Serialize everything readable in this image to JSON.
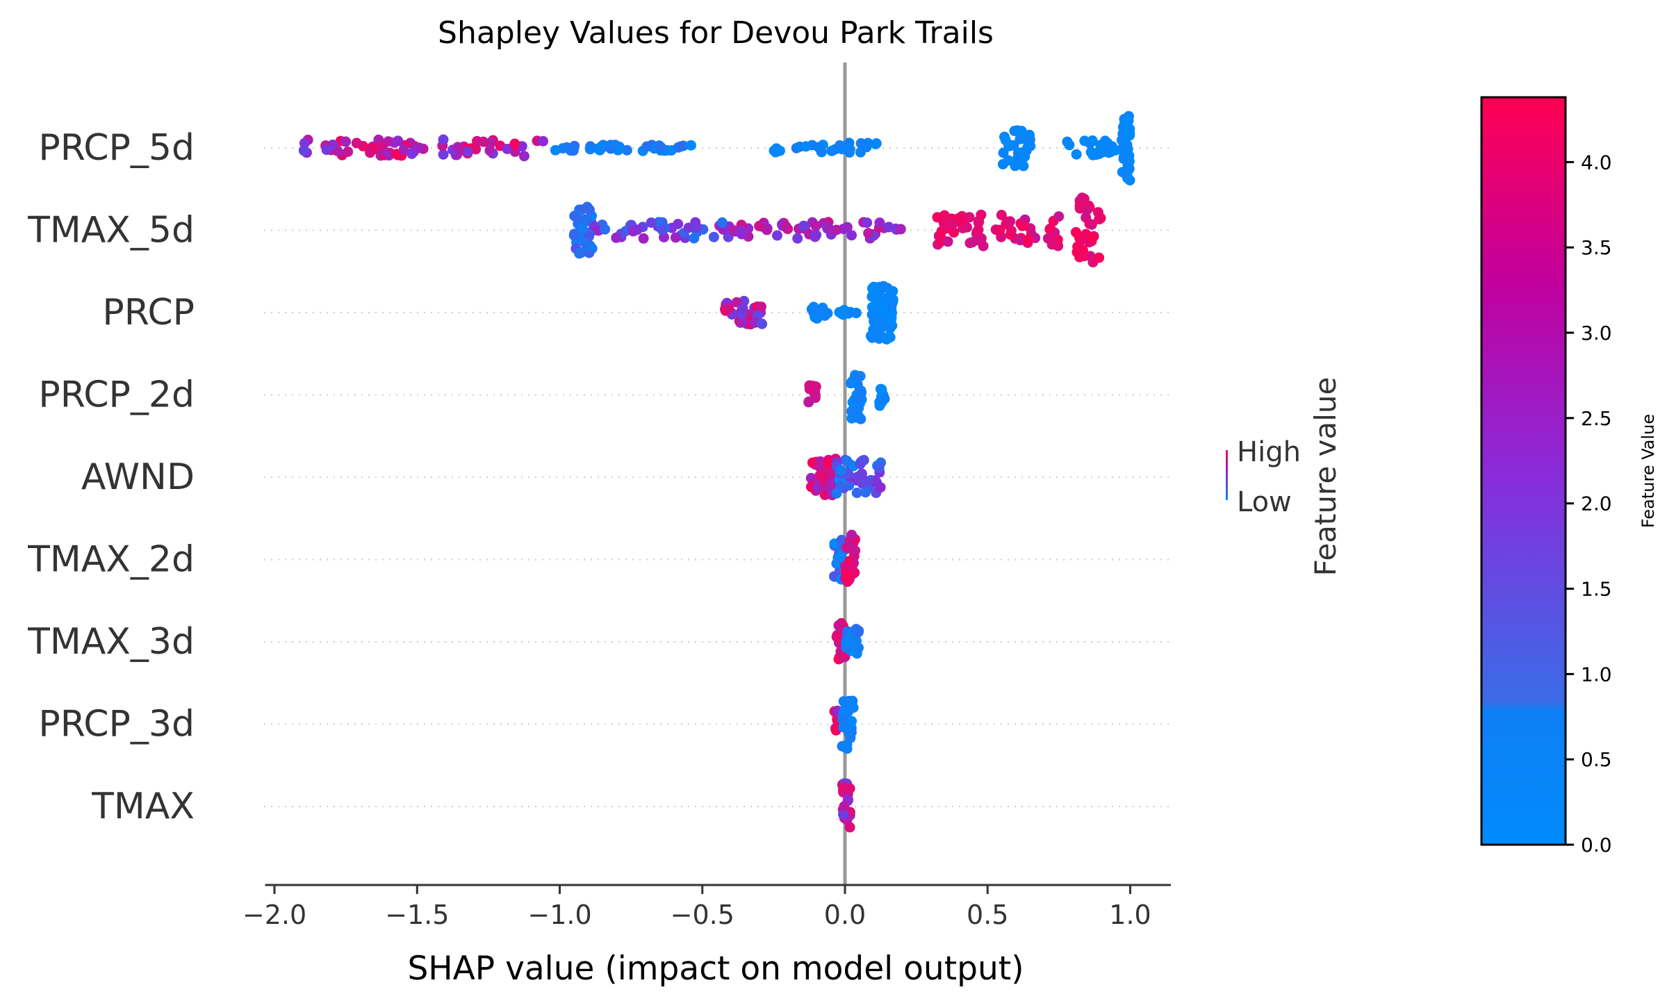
{
  "chart_data": {
    "type": "scatter",
    "subtype": "shap-beeswarm",
    "title": "Shapley Values for Devou Park Trails",
    "xlabel": "SHAP value (impact on model output)",
    "xlim": [
      -2.05,
      1.15
    ],
    "xticks": [
      -2.0,
      -1.5,
      -1.0,
      -0.5,
      0.0,
      0.5,
      1.0
    ],
    "xtick_labels": [
      "−2.0",
      "−1.5",
      "−1.0",
      "−0.5",
      "0.0",
      "0.5",
      "1.0"
    ],
    "zero_line": 0.0,
    "grid": "dotted horizontal row guides",
    "features": [
      {
        "name": "PRCP_5d",
        "clusters": [
          {
            "from": -1.9,
            "to": -1.05,
            "n": 70,
            "spread": 0.5,
            "cmin": 0.35,
            "cmax": 1.0
          },
          {
            "from": -1.05,
            "to": -0.5,
            "n": 40,
            "spread": 0.2,
            "cmin": 0.0,
            "cmax": 0.15
          },
          {
            "from": -0.25,
            "to": 0.12,
            "n": 28,
            "spread": 0.3,
            "cmin": 0.0,
            "cmax": 0.08
          },
          {
            "from": 0.55,
            "to": 0.65,
            "n": 30,
            "spread": 1.1,
            "cmin": 0.0,
            "cmax": 0.05
          },
          {
            "from": 0.75,
            "to": 0.95,
            "n": 22,
            "spread": 0.45,
            "cmin": 0.0,
            "cmax": 0.05
          },
          {
            "from": 0.97,
            "to": 1.0,
            "n": 40,
            "spread": 2.0,
            "cmin": 0.0,
            "cmax": 0.05
          }
        ]
      },
      {
        "name": "TMAX_5d",
        "clusters": [
          {
            "from": -0.95,
            "to": -0.88,
            "n": 32,
            "spread": 1.4,
            "cmin": 0.0,
            "cmax": 0.3
          },
          {
            "from": -0.88,
            "to": -0.4,
            "n": 40,
            "spread": 0.5,
            "cmin": 0.1,
            "cmax": 0.6
          },
          {
            "from": -0.4,
            "to": 0.2,
            "n": 55,
            "spread": 0.5,
            "cmin": 0.4,
            "cmax": 0.8
          },
          {
            "from": 0.32,
            "to": 0.75,
            "n": 60,
            "spread": 1.0,
            "cmin": 0.75,
            "cmax": 1.0
          },
          {
            "from": 0.8,
            "to": 0.9,
            "n": 40,
            "spread": 2.0,
            "cmin": 0.8,
            "cmax": 1.0
          }
        ]
      },
      {
        "name": "PRCP",
        "clusters": [
          {
            "from": -0.43,
            "to": -0.29,
            "n": 34,
            "spread": 0.7,
            "cmin": 0.3,
            "cmax": 1.0
          },
          {
            "from": -0.12,
            "to": -0.06,
            "n": 14,
            "spread": 0.35,
            "cmin": 0.0,
            "cmax": 0.05
          },
          {
            "from": -0.02,
            "to": 0.04,
            "n": 8,
            "spread": 0.2,
            "cmin": 0.0,
            "cmax": 0.05
          },
          {
            "from": 0.09,
            "to": 0.17,
            "n": 80,
            "spread": 1.6,
            "cmin": 0.0,
            "cmax": 0.05
          }
        ]
      },
      {
        "name": "PRCP_2d",
        "clusters": [
          {
            "from": -0.13,
            "to": -0.1,
            "n": 14,
            "spread": 0.7,
            "cmin": 0.7,
            "cmax": 1.0
          },
          {
            "from": 0.02,
            "to": 0.06,
            "n": 34,
            "spread": 1.5,
            "cmin": 0.0,
            "cmax": 0.08
          },
          {
            "from": 0.12,
            "to": 0.14,
            "n": 10,
            "spread": 0.7,
            "cmin": 0.0,
            "cmax": 0.05
          }
        ]
      },
      {
        "name": "AWND",
        "clusters": [
          {
            "from": -0.12,
            "to": -0.03,
            "n": 40,
            "spread": 1.2,
            "cmin": 0.5,
            "cmax": 1.0
          },
          {
            "from": -0.03,
            "to": 0.13,
            "n": 40,
            "spread": 1.1,
            "cmin": 0.0,
            "cmax": 0.55
          }
        ]
      },
      {
        "name": "TMAX_2d",
        "clusters": [
          {
            "from": -0.04,
            "to": 0.0,
            "n": 24,
            "spread": 1.2,
            "cmin": 0.0,
            "cmax": 0.3
          },
          {
            "from": 0.0,
            "to": 0.04,
            "n": 30,
            "spread": 1.5,
            "cmin": 0.7,
            "cmax": 1.0
          }
        ]
      },
      {
        "name": "TMAX_3d",
        "clusters": [
          {
            "from": -0.03,
            "to": 0.0,
            "n": 28,
            "spread": 1.2,
            "cmin": 0.7,
            "cmax": 1.0
          },
          {
            "from": 0.0,
            "to": 0.05,
            "n": 18,
            "spread": 0.8,
            "cmin": 0.0,
            "cmax": 0.2
          }
        ]
      },
      {
        "name": "PRCP_3d",
        "clusters": [
          {
            "from": -0.04,
            "to": 0.0,
            "n": 14,
            "spread": 0.8,
            "cmin": 0.5,
            "cmax": 1.0
          },
          {
            "from": -0.01,
            "to": 0.03,
            "n": 30,
            "spread": 1.5,
            "cmin": 0.0,
            "cmax": 0.1
          }
        ]
      },
      {
        "name": "TMAX",
        "clusters": [
          {
            "from": -0.01,
            "to": 0.02,
            "n": 30,
            "spread": 1.4,
            "cmin": 0.4,
            "cmax": 1.0
          }
        ]
      }
    ],
    "legend": {
      "axis_label": "Feature value",
      "high_label": "High",
      "low_label": "Low",
      "placement": "right"
    },
    "colorbar": {
      "label": "Feature Value",
      "range": [
        0.0,
        4.38
      ],
      "ticks": [
        0.0,
        0.5,
        1.0,
        1.5,
        2.0,
        2.5,
        3.0,
        3.5,
        4.0
      ],
      "tick_labels": [
        "0.0",
        "0.5",
        "1.0",
        "1.5",
        "2.0",
        "2.5",
        "3.0",
        "3.5",
        "4.0"
      ],
      "colors": {
        "low": "#008bfb",
        "mid": "#8a2bd9",
        "high": "#ff0052"
      }
    },
    "colors": {
      "zero_line": "#999999",
      "grid": "#cccccc",
      "axis": "#333333",
      "text": "#333333"
    }
  }
}
